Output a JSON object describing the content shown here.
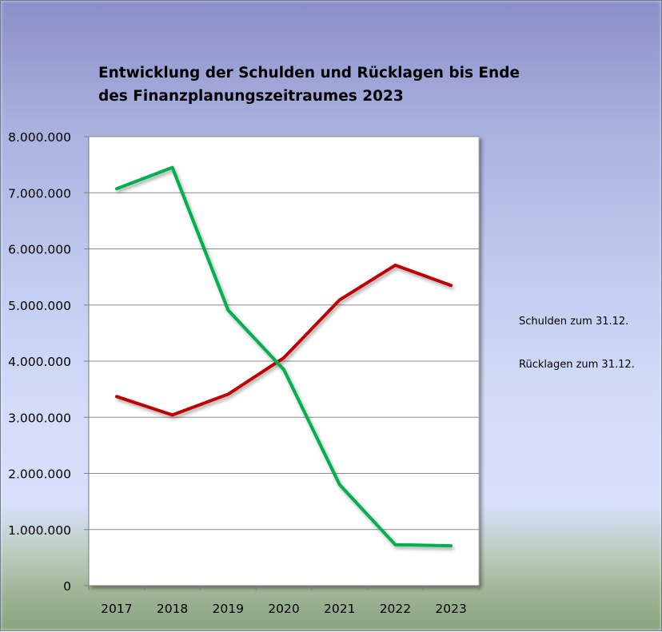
{
  "chart_data": {
    "type": "line",
    "title": "Entwicklung der Schulden und Rücklagen bis Ende des Finanzplanungszeitraumes 2023",
    "categories": [
      "2017",
      "2018",
      "2019",
      "2020",
      "2021",
      "2022",
      "2023"
    ],
    "y_ticks": [
      "0",
      "1.000.000",
      "2.000.000",
      "3.000.000",
      "4.000.000",
      "5.000.000",
      "6.000.000",
      "7.000.000",
      "8.000.000"
    ],
    "ylim": [
      0,
      8000000
    ],
    "grid": true,
    "legend_position": "right",
    "series": [
      {
        "name": "Schulden zum 31.12.",
        "color": "#c00000",
        "values": [
          3370000,
          3040000,
          3410000,
          4060000,
          5090000,
          5710000,
          5350000
        ]
      },
      {
        "name": "Rücklagen zum 31.12.",
        "color": "#00b050",
        "values": [
          7070000,
          7450000,
          4910000,
          3850000,
          1800000,
          730000,
          710000
        ]
      }
    ]
  }
}
